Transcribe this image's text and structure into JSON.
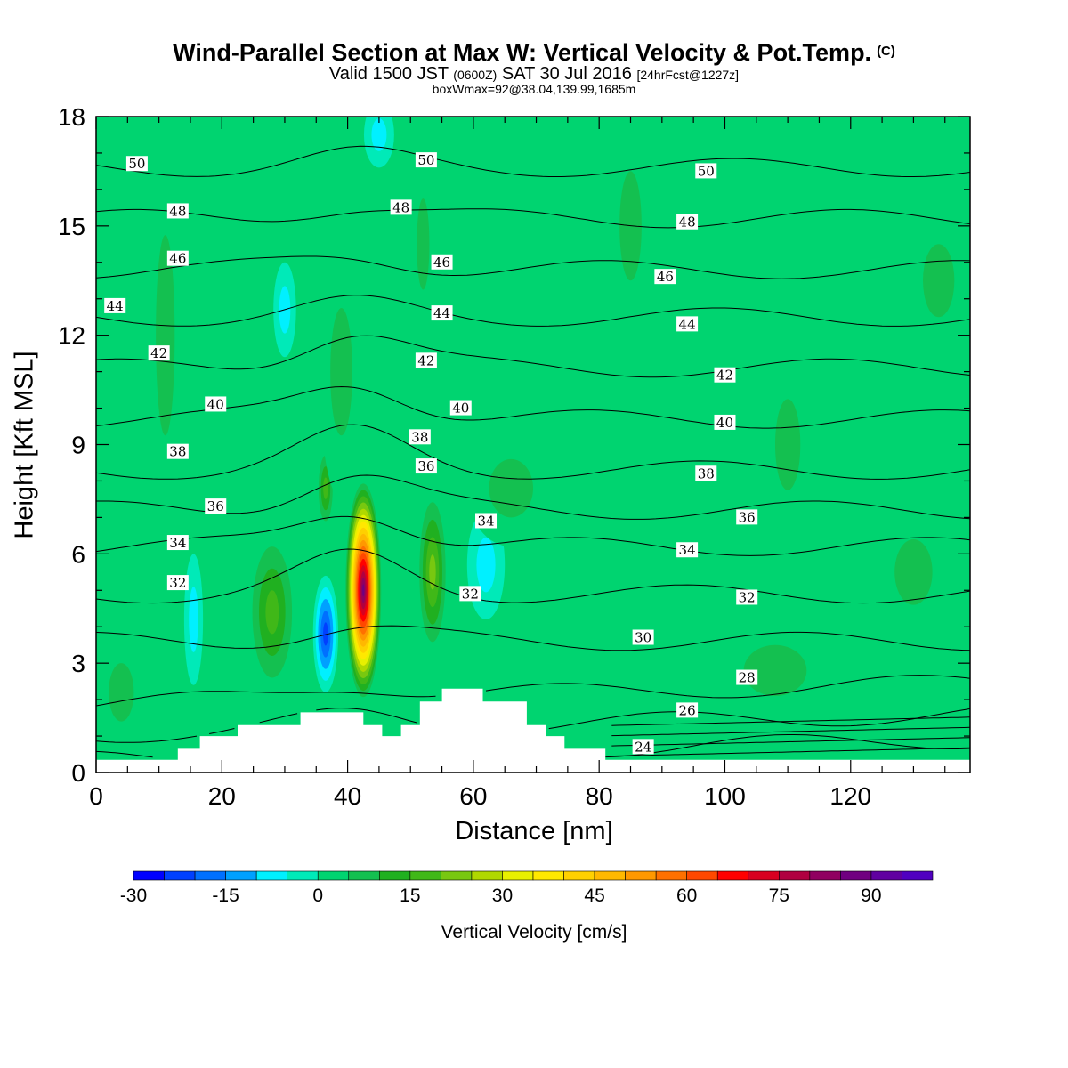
{
  "header": {
    "title": "Wind-Parallel Section at Max W: Vertical Velocity & Pot.Temp.",
    "copyright": "(C)",
    "valid_prefix": "Valid 1500 JST",
    "valid_z": "(0600Z)",
    "valid_date": "SAT 30 Jul 2016",
    "forecast": "[24hrFcst@1227z]",
    "boxinfo": "boxWmax=92@38.04,139.99,1685m"
  },
  "chart_data": {
    "type": "heatmap",
    "title": "Wind-Parallel Section at Max W: Vertical Velocity & Pot.Temp.",
    "xlabel": "Distance [nm]",
    "ylabel": "Height [Kft MSL]",
    "xlim": [
      0,
      139
    ],
    "ylim": [
      0,
      18
    ],
    "xticks": [
      0,
      20,
      40,
      60,
      80,
      100,
      120
    ],
    "yticks": [
      0,
      3,
      6,
      9,
      12,
      15,
      18
    ],
    "colorbar": {
      "label": "Vertical Velocity [cm/s]",
      "range": [
        -30,
        100
      ],
      "step": 5,
      "ticks": [
        -30,
        -15,
        0,
        15,
        30,
        45,
        60,
        75,
        90
      ],
      "colors": [
        "#0000ff",
        "#0040ff",
        "#0070ff",
        "#00a0ff",
        "#00f0ff",
        "#00eab8",
        "#00d470",
        "#14c050",
        "#20b020",
        "#40b818",
        "#78c810",
        "#b0d800",
        "#e8f000",
        "#ffe800",
        "#ffd000",
        "#ffb800",
        "#ff9800",
        "#ff7000",
        "#ff4800",
        "#ff0000",
        "#d80020",
        "#b00040",
        "#900060",
        "#700080",
        "#6000a0",
        "#5000c0"
      ]
    },
    "theta_contours": {
      "label_series": "Pot.Temp.",
      "levels": [
        24,
        26,
        28,
        30,
        32,
        34,
        36,
        38,
        40,
        42,
        44,
        46,
        48,
        50
      ],
      "labels": [
        {
          "text": "50",
          "x": 6.5,
          "y": 16.7
        },
        {
          "text": "48",
          "x": 13,
          "y": 15.4
        },
        {
          "text": "46",
          "x": 13,
          "y": 14.1
        },
        {
          "text": "44",
          "x": 3,
          "y": 12.8
        },
        {
          "text": "42",
          "x": 10,
          "y": 11.5
        },
        {
          "text": "40",
          "x": 19,
          "y": 10.1
        },
        {
          "text": "38",
          "x": 13,
          "y": 8.8
        },
        {
          "text": "36",
          "x": 19,
          "y": 7.3
        },
        {
          "text": "34",
          "x": 13,
          "y": 6.3
        },
        {
          "text": "32",
          "x": 13,
          "y": 5.2
        },
        {
          "text": "50",
          "x": 52.5,
          "y": 16.8
        },
        {
          "text": "48",
          "x": 48.5,
          "y": 15.5
        },
        {
          "text": "46",
          "x": 55,
          "y": 14.0
        },
        {
          "text": "44",
          "x": 55,
          "y": 12.6
        },
        {
          "text": "42",
          "x": 52.5,
          "y": 11.3
        },
        {
          "text": "40",
          "x": 58,
          "y": 10.0
        },
        {
          "text": "38",
          "x": 51.5,
          "y": 9.2
        },
        {
          "text": "36",
          "x": 52.5,
          "y": 8.4
        },
        {
          "text": "34",
          "x": 62,
          "y": 6.9
        },
        {
          "text": "32",
          "x": 59.5,
          "y": 4.9
        },
        {
          "text": "50",
          "x": 97,
          "y": 16.5
        },
        {
          "text": "48",
          "x": 94,
          "y": 15.1
        },
        {
          "text": "46",
          "x": 90.5,
          "y": 13.6
        },
        {
          "text": "44",
          "x": 94,
          "y": 12.3
        },
        {
          "text": "42",
          "x": 100,
          "y": 10.9
        },
        {
          "text": "40",
          "x": 100,
          "y": 9.6
        },
        {
          "text": "38",
          "x": 97,
          "y": 8.2
        },
        {
          "text": "36",
          "x": 103.5,
          "y": 7.0
        },
        {
          "text": "34",
          "x": 94,
          "y": 6.1
        },
        {
          "text": "32",
          "x": 103.5,
          "y": 4.8
        },
        {
          "text": "30",
          "x": 87,
          "y": 3.7
        },
        {
          "text": "28",
          "x": 103.5,
          "y": 2.6
        },
        {
          "text": "26",
          "x": 94,
          "y": 1.7
        },
        {
          "text": "24",
          "x": 87,
          "y": 0.7
        }
      ]
    },
    "w_features": [
      {
        "x": 42.5,
        "y": 5.0,
        "rx": 3.0,
        "ry": 3.1,
        "w": 85
      },
      {
        "x": 36.5,
        "y": 3.8,
        "rx": 2.0,
        "ry": 1.6,
        "w": -20
      },
      {
        "x": 28.0,
        "y": 4.4,
        "rx": 4.2,
        "ry": 2.4,
        "w": 18
      },
      {
        "x": 36.5,
        "y": 7.8,
        "rx": 1.5,
        "ry": 1.2,
        "w": 18
      },
      {
        "x": 53.5,
        "y": 5.5,
        "rx": 2.6,
        "ry": 2.4,
        "w": 24
      },
      {
        "x": 62.0,
        "y": 5.7,
        "rx": 3.0,
        "ry": 1.5,
        "w": -9
      },
      {
        "x": 15.5,
        "y": 4.2,
        "rx": 1.5,
        "ry": 1.8,
        "w": -4
      },
      {
        "x": 30.0,
        "y": 12.7,
        "rx": 1.8,
        "ry": 1.3,
        "w": -4
      },
      {
        "x": 45.0,
        "y": 17.5,
        "rx": 2.4,
        "ry": 0.9,
        "w": -4
      },
      {
        "x": 11.0,
        "y": 12.0,
        "rx": 3.0,
        "ry": 5.5,
        "w": 4
      },
      {
        "x": 39.0,
        "y": 11.0,
        "rx": 3.5,
        "ry": 3.5,
        "w": 4
      },
      {
        "x": 52.0,
        "y": 14.5,
        "rx": 2.0,
        "ry": 2.5,
        "w": 4
      },
      {
        "x": 85.0,
        "y": 15.0,
        "rx": 3.5,
        "ry": 3.0,
        "w": 4
      },
      {
        "x": 110.0,
        "y": 9.0,
        "rx": 4.0,
        "ry": 2.5,
        "w": 4
      },
      {
        "x": 134.0,
        "y": 13.5,
        "rx": 5.0,
        "ry": 2.0,
        "w": 4
      },
      {
        "x": 130.0,
        "y": 5.5,
        "rx": 6.0,
        "ry": 1.8,
        "w": 4
      },
      {
        "x": 66.0,
        "y": 7.8,
        "rx": 7.0,
        "ry": 1.6,
        "w": 4
      },
      {
        "x": 108.0,
        "y": 2.8,
        "rx": 10.0,
        "ry": 1.4,
        "w": 4
      },
      {
        "x": 4.0,
        "y": 2.2,
        "rx": 4.0,
        "ry": 1.6,
        "w": 5
      }
    ],
    "terrain": [
      [
        0,
        0.35
      ],
      [
        13,
        0.35
      ],
      [
        13,
        0.65
      ],
      [
        16.5,
        0.65
      ],
      [
        16.5,
        1.0
      ],
      [
        22.5,
        1.0
      ],
      [
        22.5,
        1.3
      ],
      [
        32.5,
        1.3
      ],
      [
        32.5,
        1.65
      ],
      [
        42.5,
        1.65
      ],
      [
        42.5,
        1.3
      ],
      [
        45.5,
        1.3
      ],
      [
        45.5,
        1.0
      ],
      [
        48.5,
        1.0
      ],
      [
        48.5,
        1.3
      ],
      [
        51.5,
        1.3
      ],
      [
        51.5,
        1.95
      ],
      [
        55,
        1.95
      ],
      [
        55,
        2.3
      ],
      [
        61.5,
        2.3
      ],
      [
        61.5,
        1.95
      ],
      [
        68.5,
        1.95
      ],
      [
        68.5,
        1.3
      ],
      [
        71.5,
        1.3
      ],
      [
        71.5,
        1.0
      ],
      [
        74.5,
        1.0
      ],
      [
        74.5,
        0.65
      ],
      [
        81,
        0.65
      ],
      [
        81,
        0.35
      ],
      [
        139,
        0.35
      ]
    ]
  }
}
